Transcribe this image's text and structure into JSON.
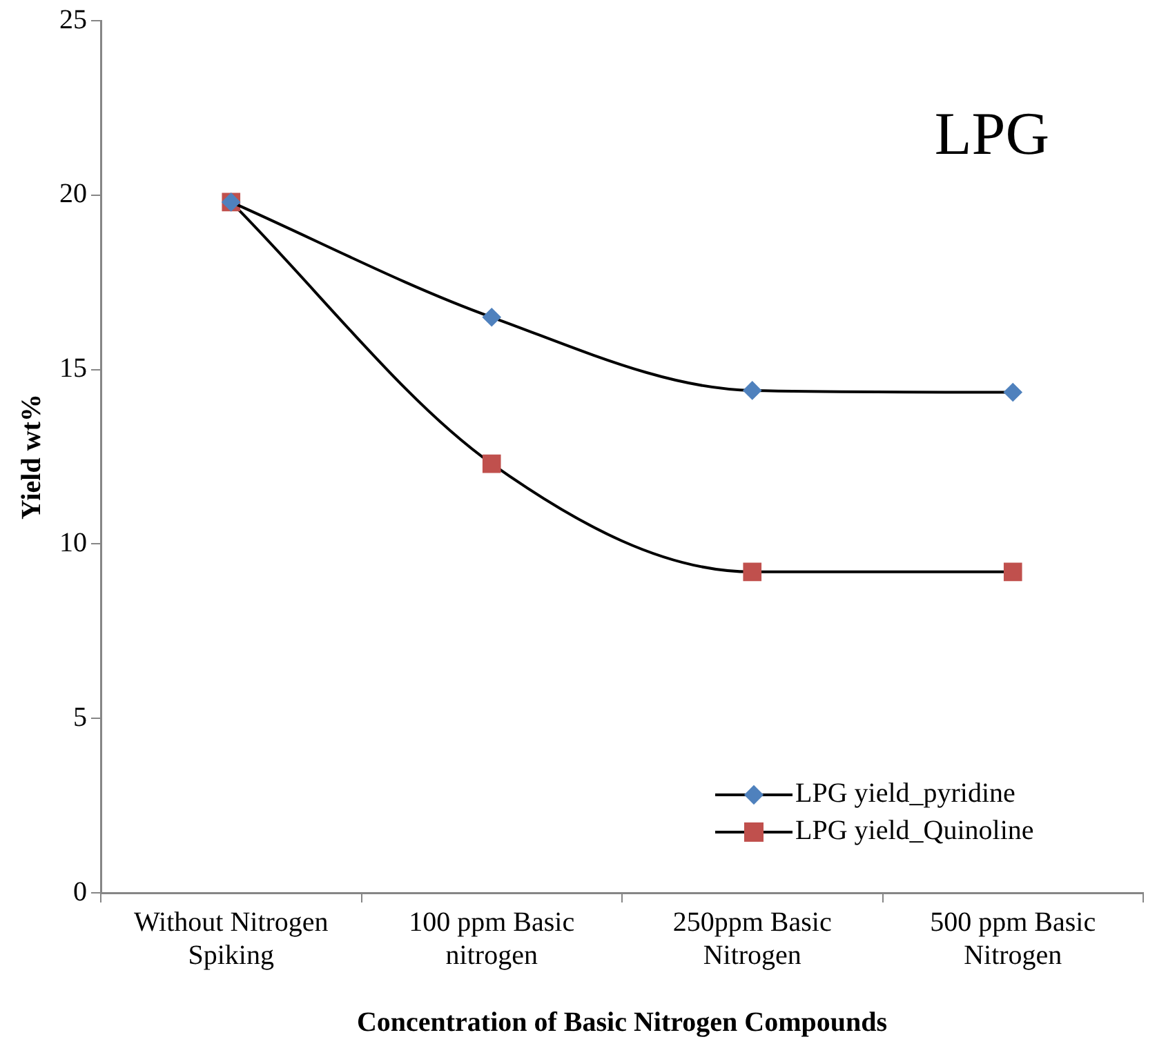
{
  "chart_data": {
    "type": "line",
    "xlabel": "Concentration of Basic Nitrogen Compounds",
    "ylabel": "Yield wt%",
    "annotations": [
      "LPG"
    ],
    "categories": [
      "Without Nitrogen Spiking",
      "100 ppm Basic nitrogen",
      "250ppm Basic Nitrogen",
      "500 ppm Basic Nitrogen"
    ],
    "series": [
      {
        "name": "LPG yield_pyridine",
        "color": "#4f81bd",
        "marker": "diamond",
        "values": [
          19.8,
          16.5,
          14.4,
          14.35
        ]
      },
      {
        "name": "LPG yield_Quinoline",
        "color": "#c0504d",
        "marker": "square",
        "values": [
          19.8,
          12.3,
          9.2,
          9.2
        ]
      }
    ],
    "ylim": [
      0,
      25
    ],
    "yticks": [
      0,
      5,
      10,
      15,
      20,
      25
    ],
    "grid": false,
    "legend": "bottom right",
    "line_style": "solid"
  }
}
